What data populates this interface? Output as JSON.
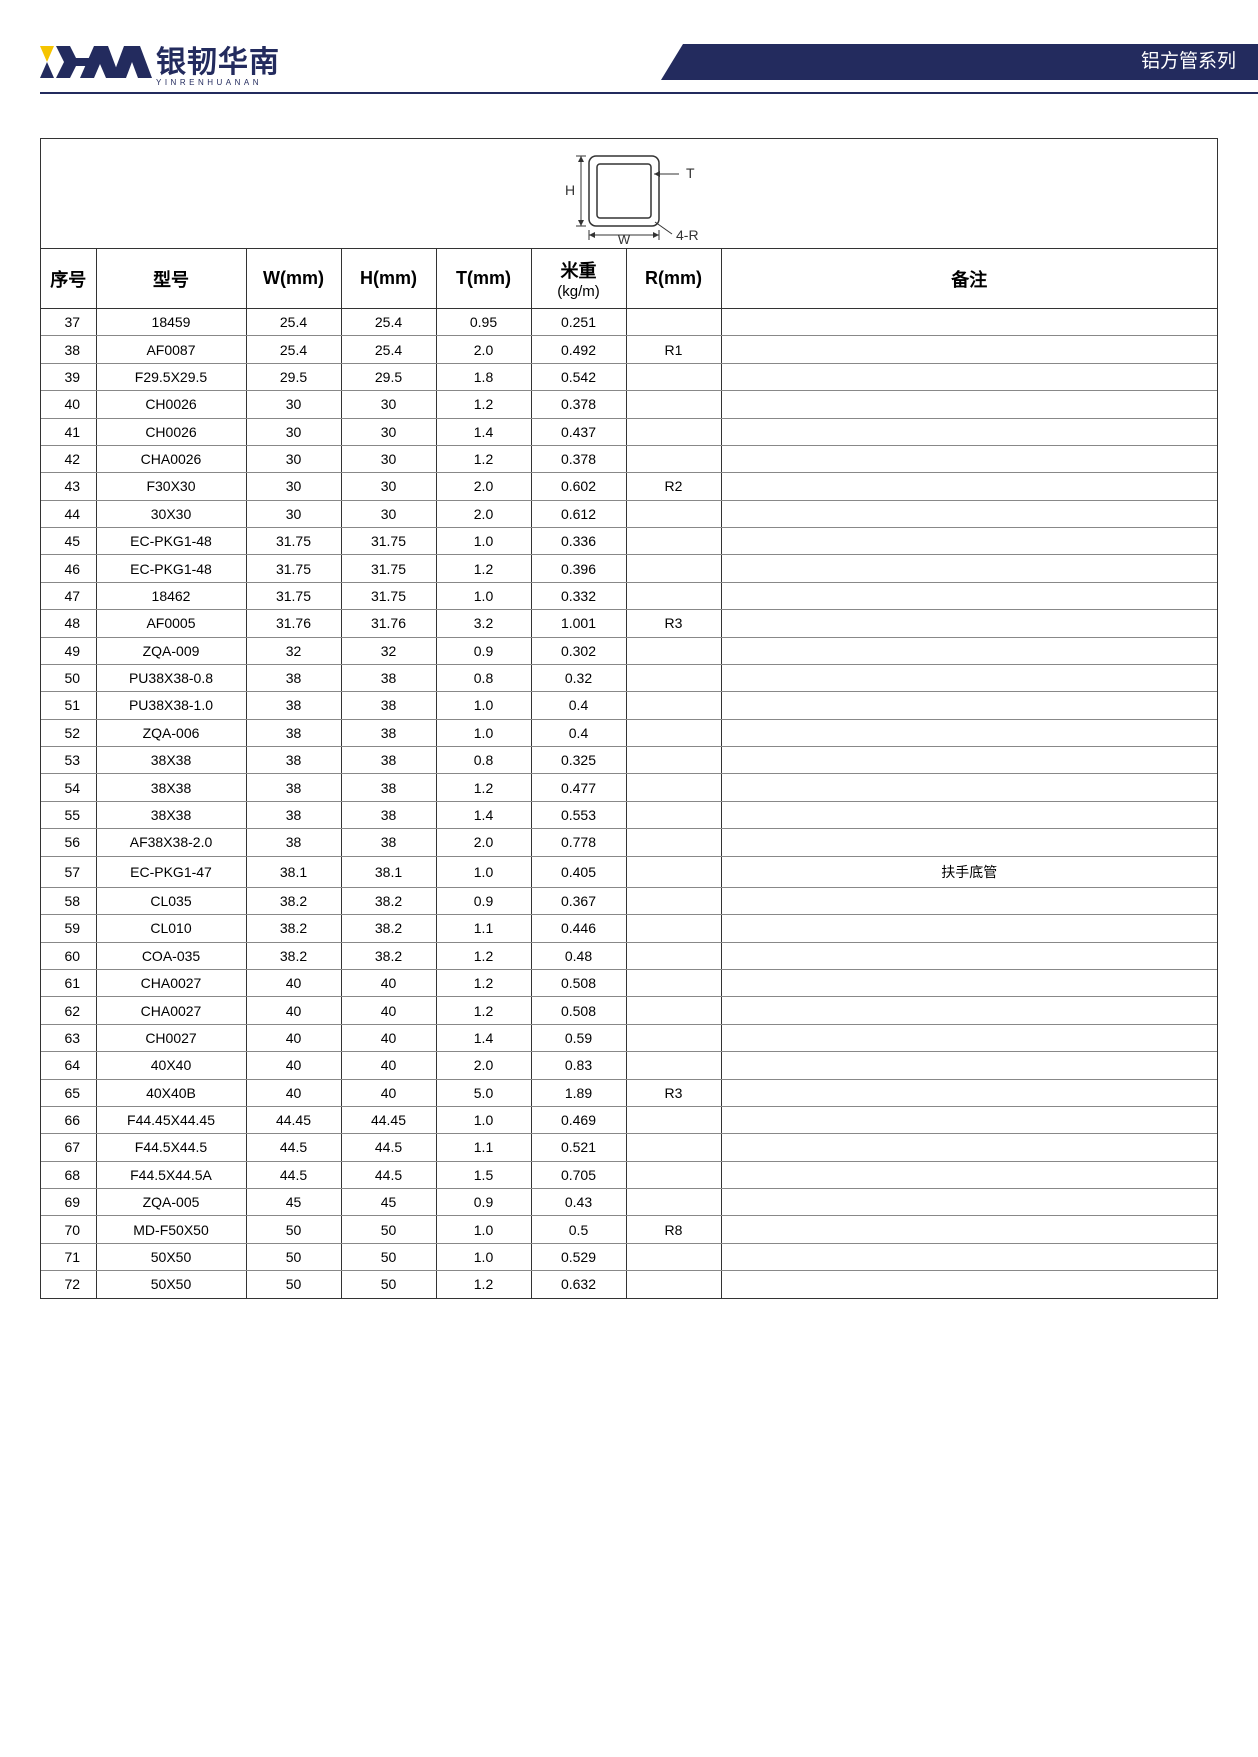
{
  "header": {
    "logo_cn": "银韧华南",
    "logo_en": "YINRENHUANAN",
    "title": "铝方管系列",
    "brand_navy": "#232b5e",
    "brand_yellow": "#f5c400"
  },
  "diagram": {
    "label_H": "H",
    "label_W": "W",
    "label_T": "T",
    "label_4R": "4-R"
  },
  "table": {
    "headers": {
      "seq": "序号",
      "model": "型号",
      "w": "W(mm)",
      "h": "H(mm)",
      "t": "T(mm)",
      "kg_main": "米重",
      "kg_sub": "(kg/m)",
      "r": "R(mm)",
      "note": "备注"
    },
    "rows": [
      {
        "seq": "37",
        "model": "18459",
        "w": "25.4",
        "h": "25.4",
        "t": "0.95",
        "kg": "0.251",
        "r": "",
        "note": ""
      },
      {
        "seq": "38",
        "model": "AF0087",
        "w": "25.4",
        "h": "25.4",
        "t": "2.0",
        "kg": "0.492",
        "r": "R1",
        "note": ""
      },
      {
        "seq": "39",
        "model": "F29.5X29.5",
        "w": "29.5",
        "h": "29.5",
        "t": "1.8",
        "kg": "0.542",
        "r": "",
        "note": ""
      },
      {
        "seq": "40",
        "model": "CH0026",
        "w": "30",
        "h": "30",
        "t": "1.2",
        "kg": "0.378",
        "r": "",
        "note": ""
      },
      {
        "seq": "41",
        "model": "CH0026",
        "w": "30",
        "h": "30",
        "t": "1.4",
        "kg": "0.437",
        "r": "",
        "note": ""
      },
      {
        "seq": "42",
        "model": "CHA0026",
        "w": "30",
        "h": "30",
        "t": "1.2",
        "kg": "0.378",
        "r": "",
        "note": ""
      },
      {
        "seq": "43",
        "model": "F30X30",
        "w": "30",
        "h": "30",
        "t": "2.0",
        "kg": "0.602",
        "r": "R2",
        "note": ""
      },
      {
        "seq": "44",
        "model": "30X30",
        "w": "30",
        "h": "30",
        "t": "2.0",
        "kg": "0.612",
        "r": "",
        "note": ""
      },
      {
        "seq": "45",
        "model": "EC-PKG1-48",
        "w": "31.75",
        "h": "31.75",
        "t": "1.0",
        "kg": "0.336",
        "r": "",
        "note": ""
      },
      {
        "seq": "46",
        "model": "EC-PKG1-48",
        "w": "31.75",
        "h": "31.75",
        "t": "1.2",
        "kg": "0.396",
        "r": "",
        "note": ""
      },
      {
        "seq": "47",
        "model": "18462",
        "w": "31.75",
        "h": "31.75",
        "t": "1.0",
        "kg": "0.332",
        "r": "",
        "note": ""
      },
      {
        "seq": "48",
        "model": "AF0005",
        "w": "31.76",
        "h": "31.76",
        "t": "3.2",
        "kg": "1.001",
        "r": "R3",
        "note": ""
      },
      {
        "seq": "49",
        "model": "ZQA-009",
        "w": "32",
        "h": "32",
        "t": "0.9",
        "kg": "0.302",
        "r": "",
        "note": ""
      },
      {
        "seq": "50",
        "model": "PU38X38-0.8",
        "w": "38",
        "h": "38",
        "t": "0.8",
        "kg": "0.32",
        "r": "",
        "note": ""
      },
      {
        "seq": "51",
        "model": "PU38X38-1.0",
        "w": "38",
        "h": "38",
        "t": "1.0",
        "kg": "0.4",
        "r": "",
        "note": ""
      },
      {
        "seq": "52",
        "model": "ZQA-006",
        "w": "38",
        "h": "38",
        "t": "1.0",
        "kg": "0.4",
        "r": "",
        "note": ""
      },
      {
        "seq": "53",
        "model": "38X38",
        "w": "38",
        "h": "38",
        "t": "0.8",
        "kg": "0.325",
        "r": "",
        "note": ""
      },
      {
        "seq": "54",
        "model": "38X38",
        "w": "38",
        "h": "38",
        "t": "1.2",
        "kg": "0.477",
        "r": "",
        "note": ""
      },
      {
        "seq": "55",
        "model": "38X38",
        "w": "38",
        "h": "38",
        "t": "1.4",
        "kg": "0.553",
        "r": "",
        "note": ""
      },
      {
        "seq": "56",
        "model": "AF38X38-2.0",
        "w": "38",
        "h": "38",
        "t": "2.0",
        "kg": "0.778",
        "r": "",
        "note": ""
      },
      {
        "seq": "57",
        "model": "EC-PKG1-47",
        "w": "38.1",
        "h": "38.1",
        "t": "1.0",
        "kg": "0.405",
        "r": "",
        "note": "扶手底管"
      },
      {
        "seq": "58",
        "model": "CL035",
        "w": "38.2",
        "h": "38.2",
        "t": "0.9",
        "kg": "0.367",
        "r": "",
        "note": ""
      },
      {
        "seq": "59",
        "model": "CL010",
        "w": "38.2",
        "h": "38.2",
        "t": "1.1",
        "kg": "0.446",
        "r": "",
        "note": ""
      },
      {
        "seq": "60",
        "model": "COA-035",
        "w": "38.2",
        "h": "38.2",
        "t": "1.2",
        "kg": "0.48",
        "r": "",
        "note": ""
      },
      {
        "seq": "61",
        "model": "CHA0027",
        "w": "40",
        "h": "40",
        "t": "1.2",
        "kg": "0.508",
        "r": "",
        "note": ""
      },
      {
        "seq": "62",
        "model": "CHA0027",
        "w": "40",
        "h": "40",
        "t": "1.2",
        "kg": "0.508",
        "r": "",
        "note": ""
      },
      {
        "seq": "63",
        "model": "CH0027",
        "w": "40",
        "h": "40",
        "t": "1.4",
        "kg": "0.59",
        "r": "",
        "note": ""
      },
      {
        "seq": "64",
        "model": "40X40",
        "w": "40",
        "h": "40",
        "t": "2.0",
        "kg": "0.83",
        "r": "",
        "note": ""
      },
      {
        "seq": "65",
        "model": "40X40B",
        "w": "40",
        "h": "40",
        "t": "5.0",
        "kg": "1.89",
        "r": "R3",
        "note": ""
      },
      {
        "seq": "66",
        "model": "F44.45X44.45",
        "w": "44.45",
        "h": "44.45",
        "t": "1.0",
        "kg": "0.469",
        "r": "",
        "note": ""
      },
      {
        "seq": "67",
        "model": "F44.5X44.5",
        "w": "44.5",
        "h": "44.5",
        "t": "1.1",
        "kg": "0.521",
        "r": "",
        "note": ""
      },
      {
        "seq": "68",
        "model": "F44.5X44.5A",
        "w": "44.5",
        "h": "44.5",
        "t": "1.5",
        "kg": "0.705",
        "r": "",
        "note": ""
      },
      {
        "seq": "69",
        "model": "ZQA-005",
        "w": "45",
        "h": "45",
        "t": "0.9",
        "kg": "0.43",
        "r": "",
        "note": ""
      },
      {
        "seq": "70",
        "model": "MD-F50X50",
        "w": "50",
        "h": "50",
        "t": "1.0",
        "kg": "0.5",
        "r": "R8",
        "note": ""
      },
      {
        "seq": "71",
        "model": "50X50",
        "w": "50",
        "h": "50",
        "t": "1.0",
        "kg": "0.529",
        "r": "",
        "note": ""
      },
      {
        "seq": "72",
        "model": "50X50",
        "w": "50",
        "h": "50",
        "t": "1.2",
        "kg": "0.632",
        "r": "",
        "note": ""
      }
    ]
  }
}
